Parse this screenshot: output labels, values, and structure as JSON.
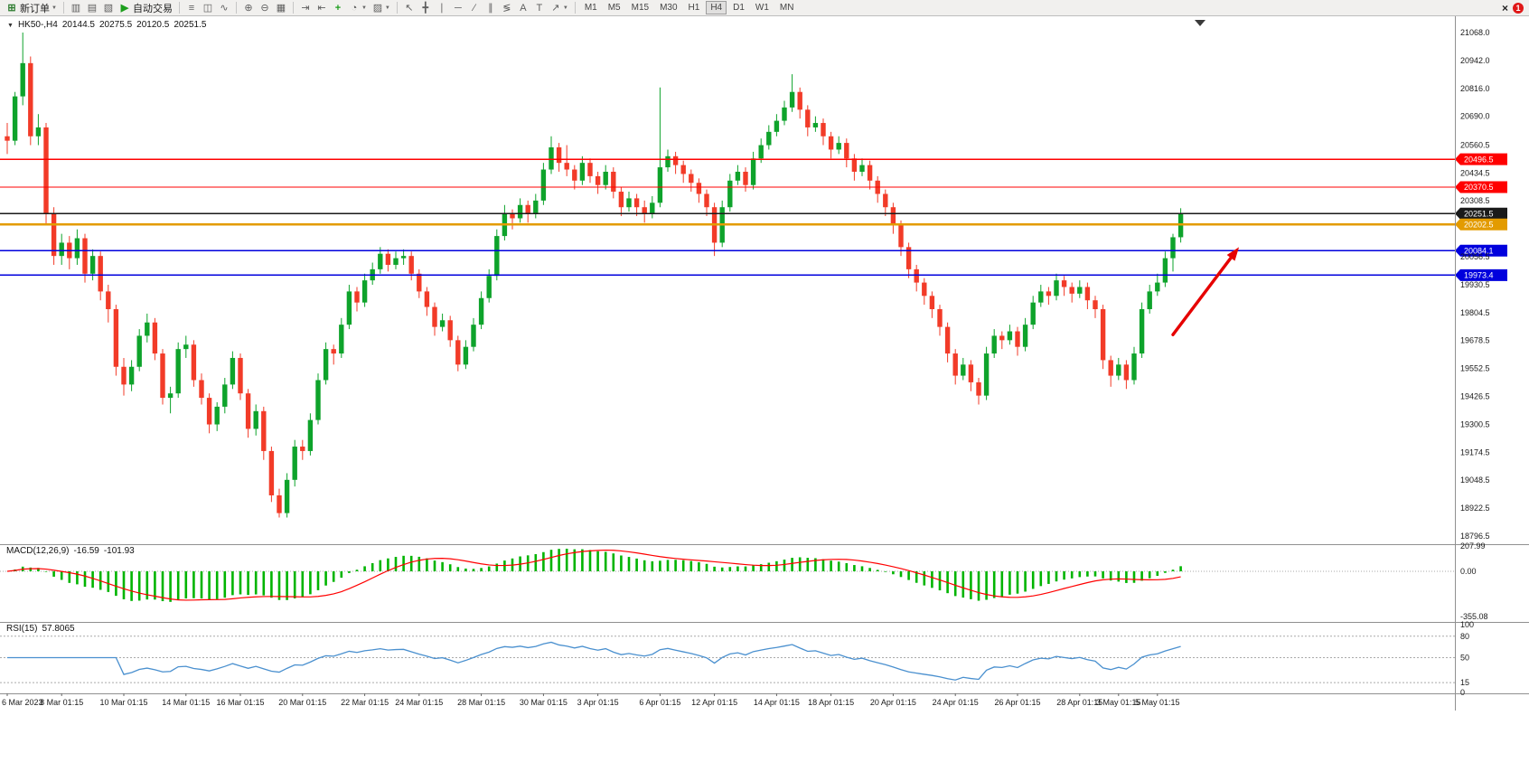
{
  "toolbar": {
    "groups": [
      [
        {
          "type": "button",
          "name": "new-order-button",
          "icon": "⊞",
          "icon_color": "#2f7d31",
          "label": "新订单",
          "caret": true
        }
      ],
      [
        {
          "type": "icon",
          "name": "market-watch-icon",
          "glyph": "▥"
        },
        {
          "type": "icon",
          "name": "data-window-icon",
          "glyph": "▤"
        },
        {
          "type": "icon",
          "name": "navigator-panel-icon",
          "glyph": "▧"
        },
        {
          "type": "button",
          "name": "auto-trading-button",
          "icon": "▶",
          "icon_color": "#1d9e1d",
          "label": "自动交易"
        }
      ],
      [
        {
          "type": "icon",
          "name": "bar-chart-icon",
          "glyph": "≡"
        },
        {
          "type": "icon",
          "name": "candlestick-chart-icon",
          "glyph": "◫"
        },
        {
          "type": "icon",
          "name": "line-chart-icon",
          "glyph": "∿"
        }
      ],
      [
        {
          "type": "icon",
          "name": "zoom-in-icon",
          "glyph": "⊕"
        },
        {
          "type": "icon",
          "name": "zoom-out-icon",
          "glyph": "⊖"
        },
        {
          "type": "icon",
          "name": "tile-windows-icon",
          "glyph": "▦"
        }
      ],
      [
        {
          "type": "icon",
          "name": "auto-scroll-icon",
          "glyph": "⇥"
        },
        {
          "type": "icon",
          "name": "chart-shift-icon",
          "glyph": "⇤"
        },
        {
          "type": "icon",
          "name": "indicators-icon",
          "glyph": "+",
          "color": "#1d9e1d"
        },
        {
          "type": "icon",
          "name": "periods-icon",
          "glyph": "◔",
          "caret": true
        },
        {
          "type": "icon",
          "name": "templates-icon",
          "glyph": "▨",
          "caret": true
        }
      ],
      [
        {
          "type": "icon",
          "name": "cursor-icon",
          "glyph": "↖"
        },
        {
          "type": "icon",
          "name": "crosshair-icon",
          "glyph": "╋"
        },
        {
          "type": "icon",
          "name": "vertical-line-icon",
          "glyph": "∣"
        },
        {
          "type": "icon",
          "name": "horizontal-line-icon",
          "glyph": "─"
        },
        {
          "type": "icon",
          "name": "trendline-icon",
          "glyph": "∕"
        },
        {
          "type": "icon",
          "name": "channel-icon",
          "glyph": "∥"
        },
        {
          "type": "icon",
          "name": "fibonacci-icon",
          "glyph": "≶"
        },
        {
          "type": "icon",
          "name": "text-icon",
          "glyph": "A"
        },
        {
          "type": "icon",
          "name": "label-icon",
          "glyph": "T"
        },
        {
          "type": "icon",
          "name": "arrows-icon",
          "glyph": "↗",
          "caret": true
        }
      ]
    ],
    "timeframes": [
      "M1",
      "M5",
      "M15",
      "M30",
      "H1",
      "H4",
      "D1",
      "W1",
      "MN"
    ],
    "active_timeframe": "H4",
    "close_glyph": "×",
    "notification_count": "1"
  },
  "chart_header": {
    "symbol_period": "HK50-,H4",
    "open": "20144.5",
    "high": "20275.5",
    "low": "20120.5",
    "close": "20251.5"
  },
  "indicators": {
    "macd": {
      "label": "MACD(12,26,9)",
      "value": "-16.59",
      "signal_value": "-101.93",
      "axis": [
        "207.99",
        "0.00",
        "-355.08"
      ]
    },
    "rsi": {
      "label": "RSI(15)",
      "value": "57.8065",
      "axis": [
        "100",
        "80",
        "50",
        "15",
        "0"
      ],
      "levels": [
        80,
        50,
        15
      ],
      "period": 15
    }
  },
  "price_axis": {
    "ticks": [
      "21068.0",
      "20942.0",
      "20816.0",
      "20690.0",
      "20560.5",
      "20434.5",
      "20308.5",
      "20056.5",
      "19930.5",
      "19804.5",
      "19678.5",
      "19552.5",
      "19426.5",
      "19300.5",
      "19174.5",
      "19048.5",
      "18922.5",
      "18796.5"
    ]
  },
  "price_lines": [
    {
      "label": "20496.5",
      "value": 20496.5,
      "color": "#ff0000",
      "width": 1.4
    },
    {
      "label": "20370.5",
      "value": 20370.5,
      "color": "#ff0000",
      "width": 1.4
    },
    {
      "label": "20251.5",
      "value": 20251.5,
      "color": "#1a1a1a",
      "width": 1.1
    },
    {
      "label": "20202.5",
      "value": 20202.5,
      "color": "#e39b00",
      "width": 2.4
    },
    {
      "label": "20084.1",
      "value": 20084.1,
      "color": "#0000dd",
      "width": 1.4
    },
    {
      "label": "19973.4",
      "value": 19973.4,
      "color": "#0000dd",
      "width": 1.4
    }
  ],
  "time_axis": {
    "labels": [
      {
        "text": "6 Mar 2023",
        "index": 0
      },
      {
        "text": "8 Mar 01:15",
        "index": 7
      },
      {
        "text": "10 Mar 01:15",
        "index": 15
      },
      {
        "text": "14 Mar 01:15",
        "index": 23
      },
      {
        "text": "16 Mar 01:15",
        "index": 30
      },
      {
        "text": "20 Mar 01:15",
        "index": 38
      },
      {
        "text": "22 Mar 01:15",
        "index": 46
      },
      {
        "text": "24 Mar 01:15",
        "index": 53
      },
      {
        "text": "28 Mar 01:15",
        "index": 61
      },
      {
        "text": "30 Mar 01:15",
        "index": 69
      },
      {
        "text": "3 Apr 01:15",
        "index": 76
      },
      {
        "text": "6 Apr 01:15",
        "index": 84
      },
      {
        "text": "12 Apr 01:15",
        "index": 91
      },
      {
        "text": "14 Apr 01:15",
        "index": 99
      },
      {
        "text": "18 Apr 01:15",
        "index": 106
      },
      {
        "text": "20 Apr 01:15",
        "index": 114
      },
      {
        "text": "24 Apr 01:15",
        "index": 122
      },
      {
        "text": "26 Apr 01:15",
        "index": 130
      },
      {
        "text": "28 Apr 01:15",
        "index": 138
      },
      {
        "text": "3 May 01:15",
        "index": 143
      },
      {
        "text": "5 May 01:15",
        "index": 148
      }
    ]
  },
  "annotations": {
    "arrow": {
      "from": {
        "index": 150,
        "price": 19705
      },
      "to": {
        "index": 158.5,
        "price": 20100
      },
      "color": "#e60000"
    }
  },
  "colors": {
    "up": "#0ea32b",
    "down": "#f23b28",
    "macd_hist": "#00b400",
    "macd_signal": "#ff0000",
    "rsi_line": "#4a90cf",
    "axis_text": "#1a1a1a",
    "separator": "#909090",
    "background": "#ffffff"
  },
  "chart_data": {
    "type": "candlestick",
    "symbol": "HK50-",
    "timeframe": "H4",
    "current_bar": {
      "open": 20144.5,
      "high": 20275.5,
      "low": 20120.5,
      "close": 20251.5
    },
    "price_range_visible": [
      18796.5,
      21068.0
    ],
    "horizontal_levels": [
      20496.5,
      20370.5,
      20251.5,
      20202.5,
      20084.1,
      19973.4
    ],
    "indicators": [
      {
        "name": "MACD",
        "params": "12,26,9",
        "values_shown": [
          -16.59,
          -101.93
        ]
      },
      {
        "name": "RSI",
        "params": "15",
        "value_shown": 57.8065
      }
    ],
    "candles": [
      [
        20600,
        20660,
        20520,
        20580
      ],
      [
        20580,
        20800,
        20560,
        20780
      ],
      [
        20780,
        21068,
        20740,
        20930
      ],
      [
        20930,
        20960,
        20560,
        20600
      ],
      [
        20600,
        20700,
        20560,
        20640
      ],
      [
        20640,
        20660,
        20200,
        20250
      ],
      [
        20250,
        20280,
        20020,
        20060
      ],
      [
        20060,
        20160,
        20020,
        20120
      ],
      [
        20120,
        20150,
        20000,
        20050
      ],
      [
        20050,
        20180,
        20020,
        20140
      ],
      [
        20140,
        20160,
        19940,
        19980
      ],
      [
        19980,
        20090,
        19950,
        20060
      ],
      [
        20060,
        20080,
        19860,
        19900
      ],
      [
        19900,
        19930,
        19760,
        19820
      ],
      [
        19820,
        19840,
        19520,
        19560
      ],
      [
        19560,
        19600,
        19430,
        19480
      ],
      [
        19480,
        19590,
        19450,
        19560
      ],
      [
        19560,
        19730,
        19540,
        19700
      ],
      [
        19700,
        19800,
        19670,
        19760
      ],
      [
        19760,
        19780,
        19590,
        19620
      ],
      [
        19620,
        19640,
        19390,
        19420
      ],
      [
        19420,
        19470,
        19350,
        19440
      ],
      [
        19440,
        19670,
        19420,
        19640
      ],
      [
        19640,
        19700,
        19600,
        19660
      ],
      [
        19660,
        19680,
        19470,
        19500
      ],
      [
        19500,
        19530,
        19390,
        19420
      ],
      [
        19420,
        19440,
        19260,
        19300
      ],
      [
        19300,
        19400,
        19270,
        19380
      ],
      [
        19380,
        19510,
        19350,
        19480
      ],
      [
        19480,
        19630,
        19460,
        19600
      ],
      [
        19600,
        19620,
        19410,
        19440
      ],
      [
        19440,
        19460,
        19240,
        19280
      ],
      [
        19280,
        19390,
        19250,
        19360
      ],
      [
        19360,
        19380,
        19140,
        19180
      ],
      [
        19180,
        19200,
        18950,
        18980
      ],
      [
        18980,
        19010,
        18880,
        18900
      ],
      [
        18900,
        19080,
        18880,
        19050
      ],
      [
        19050,
        19230,
        19020,
        19200
      ],
      [
        19200,
        19230,
        19140,
        19180
      ],
      [
        19180,
        19350,
        19160,
        19320
      ],
      [
        19320,
        19530,
        19300,
        19500
      ],
      [
        19500,
        19670,
        19480,
        19640
      ],
      [
        19640,
        19660,
        19570,
        19620
      ],
      [
        19620,
        19780,
        19600,
        19750
      ],
      [
        19750,
        19930,
        19730,
        19900
      ],
      [
        19900,
        19920,
        19810,
        19850
      ],
      [
        19850,
        19980,
        19830,
        19950
      ],
      [
        19950,
        20030,
        19930,
        20000
      ],
      [
        20000,
        20100,
        19980,
        20070
      ],
      [
        20070,
        20090,
        19990,
        20020
      ],
      [
        20020,
        20080,
        20000,
        20050
      ],
      [
        20050,
        20090,
        20020,
        20060
      ],
      [
        20060,
        20080,
        19950,
        19980
      ],
      [
        19980,
        20000,
        19870,
        19900
      ],
      [
        19900,
        19920,
        19790,
        19830
      ],
      [
        19830,
        19850,
        19700,
        19740
      ],
      [
        19740,
        19800,
        19720,
        19770
      ],
      [
        19770,
        19790,
        19650,
        19680
      ],
      [
        19680,
        19700,
        19540,
        19570
      ],
      [
        19570,
        19680,
        19550,
        19650
      ],
      [
        19650,
        19780,
        19630,
        19750
      ],
      [
        19750,
        19900,
        19730,
        19870
      ],
      [
        19870,
        20000,
        19850,
        19970
      ],
      [
        19970,
        20180,
        19950,
        20150
      ],
      [
        20150,
        20290,
        20130,
        20250
      ],
      [
        20250,
        20270,
        20180,
        20230
      ],
      [
        20230,
        20320,
        20210,
        20290
      ],
      [
        20290,
        20310,
        20210,
        20250
      ],
      [
        20250,
        20340,
        20230,
        20310
      ],
      [
        20310,
        20480,
        20290,
        20450
      ],
      [
        20450,
        20600,
        20430,
        20550
      ],
      [
        20550,
        20570,
        20440,
        20480
      ],
      [
        20480,
        20560,
        20420,
        20450
      ],
      [
        20450,
        20470,
        20360,
        20400
      ],
      [
        20400,
        20510,
        20380,
        20480
      ],
      [
        20480,
        20500,
        20390,
        20420
      ],
      [
        20420,
        20440,
        20340,
        20380
      ],
      [
        20380,
        20470,
        20360,
        20440
      ],
      [
        20440,
        20460,
        20320,
        20350
      ],
      [
        20350,
        20370,
        20240,
        20280
      ],
      [
        20280,
        20350,
        20260,
        20320
      ],
      [
        20320,
        20340,
        20240,
        20280
      ],
      [
        20280,
        20310,
        20210,
        20250
      ],
      [
        20250,
        20330,
        20230,
        20300
      ],
      [
        20300,
        20820,
        20280,
        20460
      ],
      [
        20460,
        20540,
        20440,
        20510
      ],
      [
        20510,
        20530,
        20430,
        20470
      ],
      [
        20470,
        20490,
        20390,
        20430
      ],
      [
        20430,
        20450,
        20350,
        20390
      ],
      [
        20390,
        20410,
        20300,
        20340
      ],
      [
        20340,
        20360,
        20240,
        20280
      ],
      [
        20280,
        20300,
        20060,
        20120
      ],
      [
        20120,
        20310,
        20100,
        20280
      ],
      [
        20280,
        20430,
        20260,
        20400
      ],
      [
        20400,
        20470,
        20380,
        20440
      ],
      [
        20440,
        20460,
        20350,
        20380
      ],
      [
        20380,
        20530,
        20360,
        20500
      ],
      [
        20500,
        20590,
        20480,
        20560
      ],
      [
        20560,
        20650,
        20540,
        20620
      ],
      [
        20620,
        20700,
        20600,
        20670
      ],
      [
        20670,
        20760,
        20650,
        20730
      ],
      [
        20730,
        20880,
        20710,
        20800
      ],
      [
        20800,
        20820,
        20680,
        20720
      ],
      [
        20720,
        20740,
        20600,
        20640
      ],
      [
        20640,
        20690,
        20620,
        20660
      ],
      [
        20660,
        20680,
        20560,
        20600
      ],
      [
        20600,
        20620,
        20500,
        20540
      ],
      [
        20540,
        20600,
        20520,
        20570
      ],
      [
        20570,
        20590,
        20460,
        20500
      ],
      [
        20500,
        20520,
        20400,
        20440
      ],
      [
        20440,
        20500,
        20420,
        20470
      ],
      [
        20470,
        20490,
        20360,
        20400
      ],
      [
        20400,
        20420,
        20300,
        20340
      ],
      [
        20340,
        20360,
        20240,
        20280
      ],
      [
        20280,
        20300,
        20160,
        20200
      ],
      [
        20200,
        20220,
        20060,
        20100
      ],
      [
        20100,
        20120,
        19960,
        20000
      ],
      [
        20000,
        20020,
        19900,
        19940
      ],
      [
        19940,
        19960,
        19840,
        19880
      ],
      [
        19880,
        19900,
        19780,
        19820
      ],
      [
        19820,
        19840,
        19700,
        19740
      ],
      [
        19740,
        19760,
        19580,
        19620
      ],
      [
        19620,
        19640,
        19480,
        19520
      ],
      [
        19520,
        19600,
        19500,
        19570
      ],
      [
        19570,
        19590,
        19450,
        19490
      ],
      [
        19490,
        19510,
        19390,
        19430
      ],
      [
        19430,
        19650,
        19410,
        19620
      ],
      [
        19620,
        19730,
        19600,
        19700
      ],
      [
        19700,
        19720,
        19640,
        19680
      ],
      [
        19680,
        19750,
        19660,
        19720
      ],
      [
        19720,
        19740,
        19610,
        19650
      ],
      [
        19650,
        19780,
        19630,
        19750
      ],
      [
        19750,
        19880,
        19730,
        19850
      ],
      [
        19850,
        19930,
        19830,
        19900
      ],
      [
        19900,
        19920,
        19840,
        19880
      ],
      [
        19880,
        19980,
        19860,
        19950
      ],
      [
        19950,
        19970,
        19880,
        19920
      ],
      [
        19920,
        19940,
        19850,
        19890
      ],
      [
        19890,
        19950,
        19870,
        19920
      ],
      [
        19920,
        19940,
        19820,
        19860
      ],
      [
        19860,
        19880,
        19780,
        19820
      ],
      [
        19820,
        19840,
        19550,
        19590
      ],
      [
        19590,
        19610,
        19470,
        19520
      ],
      [
        19520,
        19600,
        19500,
        19570
      ],
      [
        19570,
        19590,
        19460,
        19500
      ],
      [
        19500,
        19650,
        19480,
        19620
      ],
      [
        19620,
        19850,
        19600,
        19820
      ],
      [
        19820,
        19930,
        19800,
        19900
      ],
      [
        19900,
        19980,
        19880,
        19940
      ],
      [
        19940,
        20080,
        19920,
        20050
      ],
      [
        20050,
        20160,
        19990,
        20144.5
      ],
      [
        20144.5,
        20275.5,
        20120.5,
        20251.5
      ]
    ]
  }
}
